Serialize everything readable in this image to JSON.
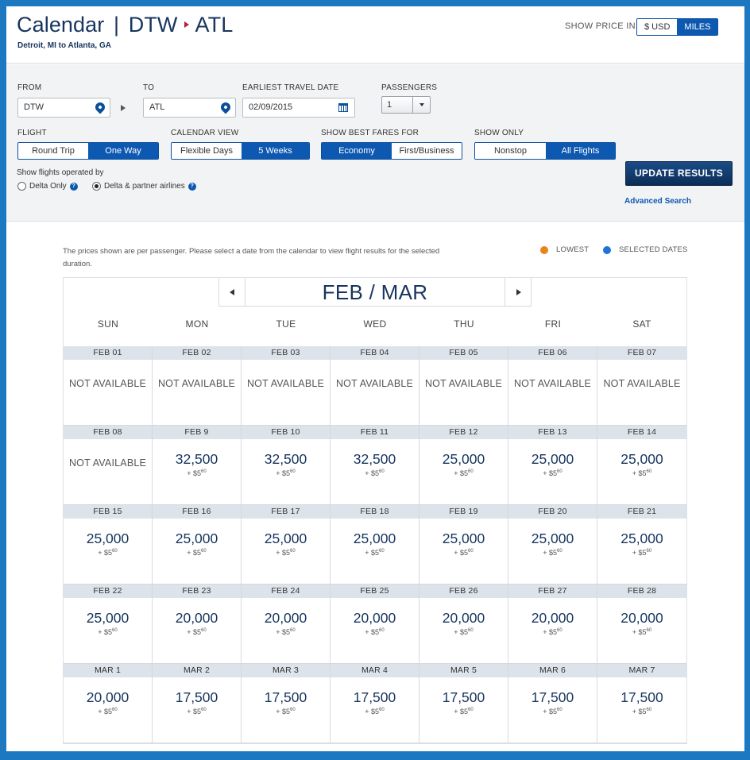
{
  "header": {
    "title_prefix": "Calendar",
    "separator": "|",
    "origin_code": "DTW",
    "dest_code": "ATL",
    "subtitle": "Detroit, MI to Atlanta, GA",
    "price_in_label": "SHOW PRICE IN",
    "price_options": [
      {
        "label": "$ USD",
        "selected": false
      },
      {
        "label": "MILES",
        "selected": true
      }
    ]
  },
  "search": {
    "from_label": "FROM",
    "from_value": "DTW",
    "to_label": "TO",
    "to_value": "ATL",
    "date_label": "EARLIEST TRAVEL DATE",
    "date_value": "02/09/2015",
    "passengers_label": "PASSENGERS",
    "passengers_value": "1",
    "flight_label": "FLIGHT",
    "flight_options": [
      {
        "label": "Round Trip",
        "selected": false
      },
      {
        "label": "One Way",
        "selected": true
      }
    ],
    "calendar_view_label": "CALENDAR VIEW",
    "calendar_view_options": [
      {
        "label": "Flexible Days",
        "selected": false
      },
      {
        "label": "5 Weeks",
        "selected": true
      }
    ],
    "fares_label": "SHOW BEST FARES FOR",
    "fares_options": [
      {
        "label": "Economy",
        "selected": true
      },
      {
        "label": "First/Business",
        "selected": false
      }
    ],
    "show_only_label": "SHOW ONLY",
    "show_only_options": [
      {
        "label": "Nonstop",
        "selected": false
      },
      {
        "label": "All Flights",
        "selected": true
      }
    ],
    "operated_label": "Show flights operated by",
    "operated_options": [
      {
        "label": "Delta Only",
        "selected": false
      },
      {
        "label": "Delta & partner airlines",
        "selected": true
      }
    ],
    "help_glyph": "?",
    "update_button": "UPDATE RESULTS",
    "advanced_link": "Advanced Search"
  },
  "calendar": {
    "note": "The prices shown are per passenger. Please select a date from the calendar to view flight results for the selected duration.",
    "legend": [
      {
        "label": "LOWEST",
        "color": "#e8841c"
      },
      {
        "label": "SELECTED DATES",
        "color": "#1f74d6"
      }
    ],
    "month_label": "FEB / MAR",
    "days_of_week": [
      "SUN",
      "MON",
      "TUE",
      "WED",
      "THU",
      "FRI",
      "SAT"
    ],
    "not_available_text": "NOT AVAILABLE",
    "tax_prefix": "+ $",
    "weeks": [
      [
        {
          "date": "FEB 01",
          "miles": null,
          "tax_whole": null,
          "tax_cents": null
        },
        {
          "date": "FEB 02",
          "miles": null,
          "tax_whole": null,
          "tax_cents": null
        },
        {
          "date": "FEB 03",
          "miles": null,
          "tax_whole": null,
          "tax_cents": null
        },
        {
          "date": "FEB 04",
          "miles": null,
          "tax_whole": null,
          "tax_cents": null
        },
        {
          "date": "FEB 05",
          "miles": null,
          "tax_whole": null,
          "tax_cents": null
        },
        {
          "date": "FEB 06",
          "miles": null,
          "tax_whole": null,
          "tax_cents": null
        },
        {
          "date": "FEB 07",
          "miles": null,
          "tax_whole": null,
          "tax_cents": null
        }
      ],
      [
        {
          "date": "FEB 08",
          "miles": null,
          "tax_whole": null,
          "tax_cents": null
        },
        {
          "date": "FEB 9",
          "miles": "32,500",
          "tax_whole": "5",
          "tax_cents": "60"
        },
        {
          "date": "FEB 10",
          "miles": "32,500",
          "tax_whole": "5",
          "tax_cents": "60"
        },
        {
          "date": "FEB 11",
          "miles": "32,500",
          "tax_whole": "5",
          "tax_cents": "60"
        },
        {
          "date": "FEB 12",
          "miles": "25,000",
          "tax_whole": "5",
          "tax_cents": "60"
        },
        {
          "date": "FEB 13",
          "miles": "25,000",
          "tax_whole": "5",
          "tax_cents": "60"
        },
        {
          "date": "FEB 14",
          "miles": "25,000",
          "tax_whole": "5",
          "tax_cents": "60"
        }
      ],
      [
        {
          "date": "FEB 15",
          "miles": "25,000",
          "tax_whole": "5",
          "tax_cents": "60"
        },
        {
          "date": "FEB 16",
          "miles": "25,000",
          "tax_whole": "5",
          "tax_cents": "60"
        },
        {
          "date": "FEB 17",
          "miles": "25,000",
          "tax_whole": "5",
          "tax_cents": "60"
        },
        {
          "date": "FEB 18",
          "miles": "25,000",
          "tax_whole": "5",
          "tax_cents": "60"
        },
        {
          "date": "FEB 19",
          "miles": "25,000",
          "tax_whole": "5",
          "tax_cents": "60"
        },
        {
          "date": "FEB 20",
          "miles": "25,000",
          "tax_whole": "5",
          "tax_cents": "60"
        },
        {
          "date": "FEB 21",
          "miles": "25,000",
          "tax_whole": "5",
          "tax_cents": "60"
        }
      ],
      [
        {
          "date": "FEB 22",
          "miles": "25,000",
          "tax_whole": "5",
          "tax_cents": "60"
        },
        {
          "date": "FEB 23",
          "miles": "20,000",
          "tax_whole": "5",
          "tax_cents": "60"
        },
        {
          "date": "FEB 24",
          "miles": "20,000",
          "tax_whole": "5",
          "tax_cents": "60"
        },
        {
          "date": "FEB 25",
          "miles": "20,000",
          "tax_whole": "5",
          "tax_cents": "60"
        },
        {
          "date": "FEB 26",
          "miles": "20,000",
          "tax_whole": "5",
          "tax_cents": "60"
        },
        {
          "date": "FEB 27",
          "miles": "20,000",
          "tax_whole": "5",
          "tax_cents": "60"
        },
        {
          "date": "FEB 28",
          "miles": "20,000",
          "tax_whole": "5",
          "tax_cents": "60"
        }
      ],
      [
        {
          "date": "MAR 1",
          "miles": "20,000",
          "tax_whole": "5",
          "tax_cents": "60"
        },
        {
          "date": "MAR 2",
          "miles": "17,500",
          "tax_whole": "5",
          "tax_cents": "60"
        },
        {
          "date": "MAR 3",
          "miles": "17,500",
          "tax_whole": "5",
          "tax_cents": "60"
        },
        {
          "date": "MAR 4",
          "miles": "17,500",
          "tax_whole": "5",
          "tax_cents": "60"
        },
        {
          "date": "MAR 5",
          "miles": "17,500",
          "tax_whole": "5",
          "tax_cents": "60"
        },
        {
          "date": "MAR 6",
          "miles": "17,500",
          "tax_whole": "5",
          "tax_cents": "60"
        },
        {
          "date": "MAR 7",
          "miles": "17,500",
          "tax_whole": "5",
          "tax_cents": "60"
        }
      ]
    ]
  },
  "icons": {
    "location": "map-pin-icon",
    "calendar": "calendar-icon",
    "dropdown": "chevron-down-icon",
    "prev": "chevron-left-icon",
    "next": "chevron-right-icon",
    "help": "help-icon"
  }
}
